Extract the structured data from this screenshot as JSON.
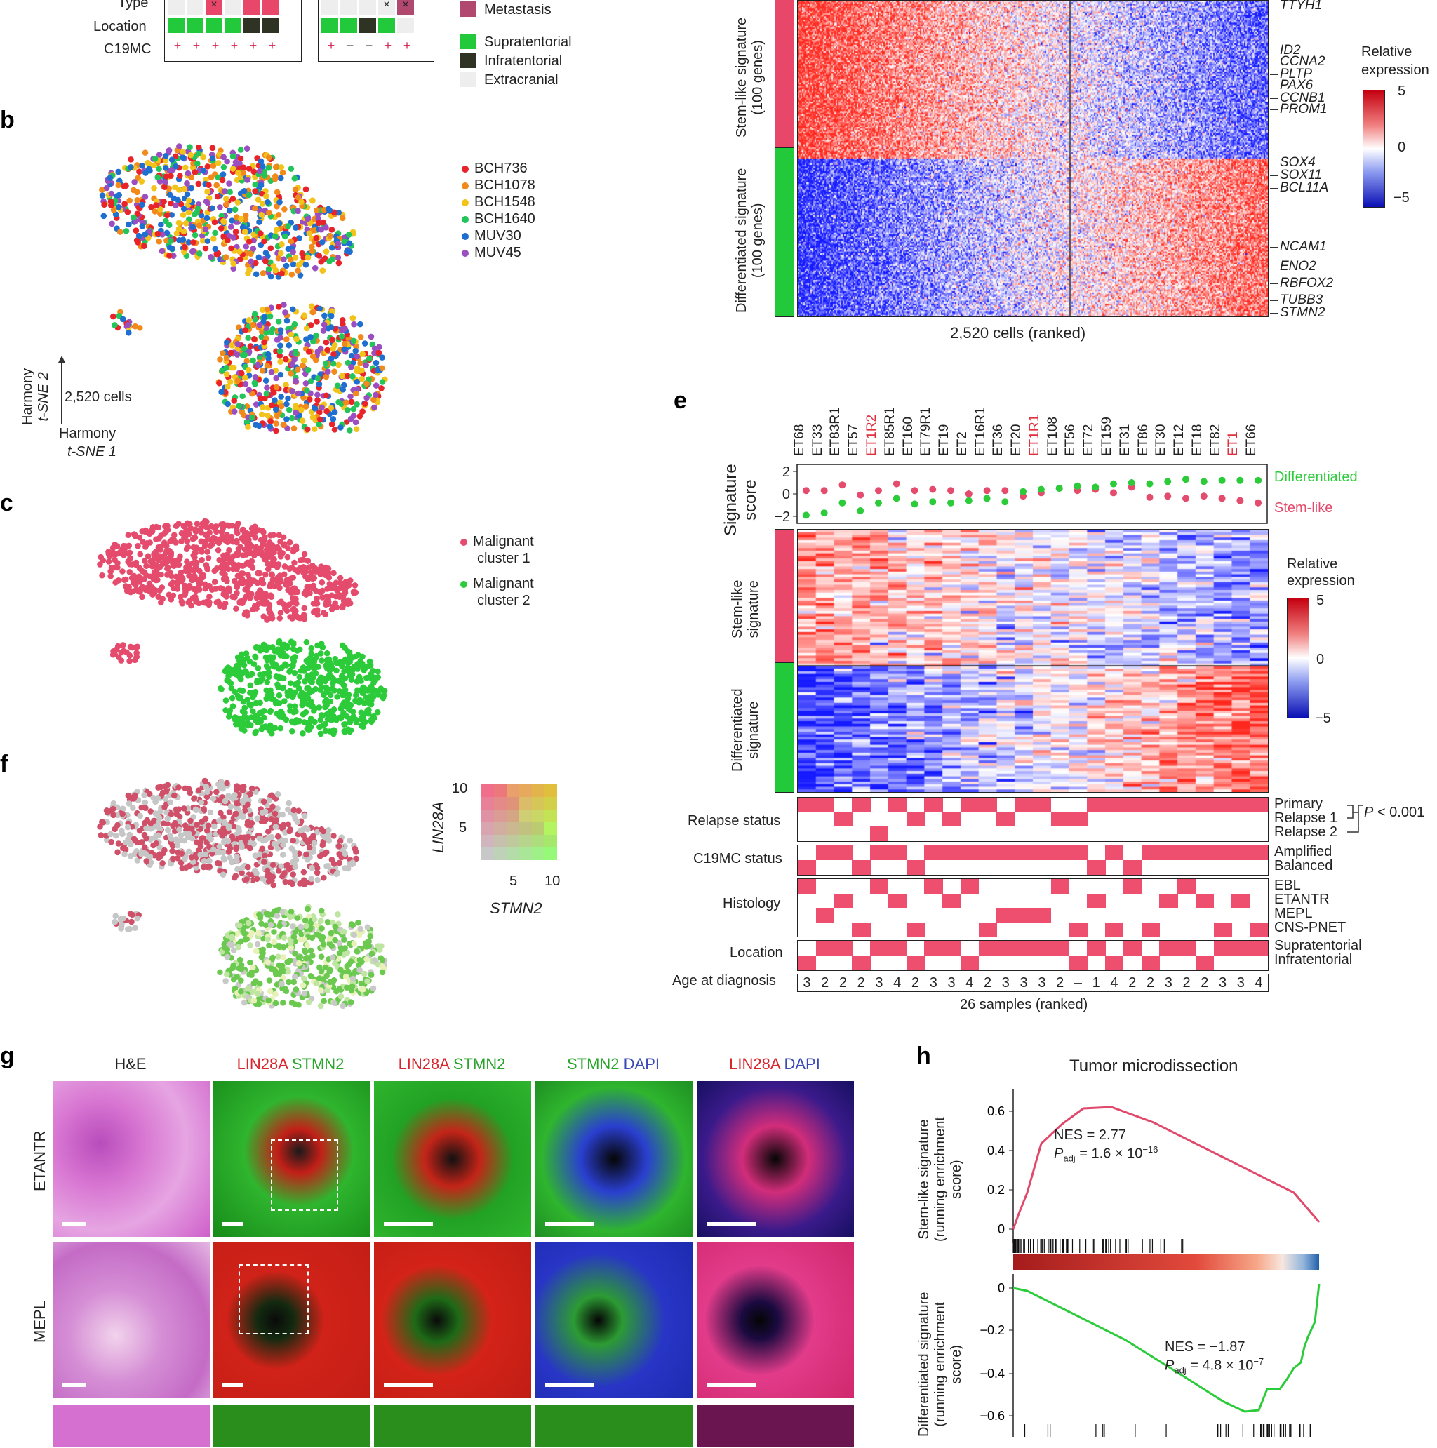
{
  "panel_labels": {
    "b": "b",
    "c": "c",
    "e": "e",
    "f": "f",
    "g": "g",
    "h": "h"
  },
  "panel_a": {
    "row_labels": [
      "Type",
      "Location",
      "C19MC"
    ],
    "c19mc_left": [
      "+",
      "+",
      "+",
      "+",
      "+",
      "+",
      "+"
    ],
    "c19mc_right": [
      "+",
      "−",
      "−",
      "+",
      "+"
    ],
    "legend": [
      "Metastasis",
      "Supratentorial",
      "Infratentorial",
      "Extracranial"
    ],
    "colors": {
      "metastasis": "#b0486f",
      "supratentorial": "#22c93b",
      "infratentorial": "#2e3324",
      "extracranial": "#eeeeee",
      "type_pink": "#e8476a"
    }
  },
  "panel_b": {
    "legend": [
      {
        "name": "BCH736",
        "color": "#e8232a"
      },
      {
        "name": "BCH1078",
        "color": "#f28a1b"
      },
      {
        "name": "BCH1548",
        "color": "#f2c31b"
      },
      {
        "name": "BCH1640",
        "color": "#23c45a"
      },
      {
        "name": "MUV30",
        "color": "#1f6fd1"
      },
      {
        "name": "MUV45",
        "color": "#9a4ec0"
      }
    ],
    "axis_y": "Harmony",
    "axis_y2": "t-SNE 2",
    "axis_x": "Harmony",
    "axis_x2": "t-SNE 1",
    "cells_label": "2,520 cells"
  },
  "panel_c": {
    "legend": [
      {
        "name": "Malignant",
        "name2": "cluster 1",
        "color": "#e44b6c"
      },
      {
        "name": "Malignant",
        "name2": "cluster 2",
        "color": "#2ccb3a"
      }
    ]
  },
  "panel_d": {
    "ylabel_top": "Stem-like signature",
    "ylabel_top2": "(100 genes)",
    "ylabel_bottom": "Differentiated signature",
    "ylabel_bottom2": "(100 genes)",
    "xlabel": "2,520 cells (ranked)",
    "genes_top": [
      "TTYH1",
      "ID2",
      "CCNA2",
      "PLTP",
      "PAX6",
      "CCNB1",
      "PROM1"
    ],
    "genes_bottom": [
      "SOX4",
      "SOX11",
      "BCL11A",
      "NCAM1",
      "ENO2",
      "RBFOX2",
      "TUBB3",
      "STMN2"
    ],
    "scale_title": "Relative",
    "scale_title2": "expression",
    "scale_ticks": [
      "5",
      "0",
      "−5"
    ]
  },
  "panel_e": {
    "samples": [
      "ET68",
      "ET33",
      "ET83R1",
      "ET57",
      "ET1R2",
      "ET85R1",
      "ET160",
      "ET79R1",
      "ET19",
      "ET2",
      "ET16R1",
      "ET36",
      "ET20",
      "ET1R1",
      "ET108",
      "ET56",
      "ET72",
      "ET159",
      "ET31",
      "ET86",
      "ET30",
      "ET12",
      "ET18",
      "ET82",
      "ET1",
      "ET66"
    ],
    "red_samples": [
      "ET1R2",
      "ET1R1",
      "ET1"
    ],
    "score_ylabel": "Signature",
    "score_ylabel2": "score",
    "score_ticks": [
      "2",
      "0",
      "−2"
    ],
    "score_legend": {
      "differentiated": "Differentiated",
      "stem": "Stem-like"
    },
    "heat_ylabel_top": "Stem-like",
    "heat_ylabel_top2": "signature",
    "heat_ylabel_bottom": "Differentiated",
    "heat_ylabel_bottom2": "signature",
    "scale_title": "Relative",
    "scale_title2": "expression",
    "scale_ticks": [
      "5",
      "0",
      "−5"
    ],
    "track_labels": [
      "Relapse status",
      "C19MC status",
      "Histology",
      "Location",
      "Age at diagnosis"
    ],
    "relapse_levels": [
      "Primary",
      "Relapse 1",
      "Relapse 2"
    ],
    "p_value": "P < 0.001",
    "c19mc_levels": [
      "Amplified",
      "Balanced"
    ],
    "histology_levels": [
      "EBL",
      "ETANTR",
      "MEPL",
      "CNS-PNET"
    ],
    "location_levels": [
      "Supratentorial",
      "Infratentorial"
    ],
    "ages": [
      "3",
      "2",
      "2",
      "2",
      "3",
      "4",
      "2",
      "3",
      "3",
      "4",
      "2",
      "3",
      "3",
      "3",
      "2",
      "–",
      "1",
      "4",
      "2",
      "2",
      "3",
      "2",
      "2",
      "3",
      "3",
      "4"
    ],
    "xlabel": "26 samples (ranked)"
  },
  "panel_f": {
    "ylabel": "LIN28A",
    "xlabel": "STMN2",
    "yticks": [
      "10",
      "5"
    ],
    "xticks": [
      "5",
      "10"
    ]
  },
  "panel_g": {
    "col_headers": [
      [
        {
          "t": "H&E",
          "c": "#222222"
        }
      ],
      [
        {
          "t": "LIN28A",
          "c": "#d8262c"
        },
        {
          "t": " STMN2",
          "c": "#2aa52c"
        }
      ],
      [
        {
          "t": "LIN28A",
          "c": "#d8262c"
        },
        {
          "t": " STMN2",
          "c": "#2aa52c"
        }
      ],
      [
        {
          "t": "STMN2",
          "c": "#2aa52c"
        },
        {
          "t": " DAPI",
          "c": "#3b4bb5"
        }
      ],
      [
        {
          "t": "LIN28A",
          "c": "#d8262c"
        },
        {
          "t": " DAPI",
          "c": "#3b4bb5"
        }
      ]
    ],
    "row_labels": [
      "ETANTR",
      "MEPL"
    ]
  },
  "panel_h": {
    "title": "Tumor microdissection",
    "top_ylabel": "Stem-like signature",
    "top_ylabel2": "(running enrichment",
    "top_ylabel3": "score)",
    "top_nes": "NES = 2.77",
    "top_padj_prefix": "P",
    "top_padj_sub": "adj",
    "top_padj_val": " = 1.6 × 10",
    "top_padj_exp": "−16",
    "top_yticks": [
      "0.6",
      "0.4",
      "0.2",
      "0"
    ],
    "bottom_ylabel": "Differentiated signature",
    "bottom_ylabel2": "(running enrichment",
    "bottom_ylabel3": "score)",
    "bottom_nes": "NES = −1.87",
    "bottom_padj_prefix": "P",
    "bottom_padj_sub": "adj",
    "bottom_padj_val": " = 4.8 × 10",
    "bottom_padj_exp": "−7",
    "bottom_yticks": [
      "0",
      "−0.2",
      "−0.4",
      "−0.6"
    ]
  }
}
